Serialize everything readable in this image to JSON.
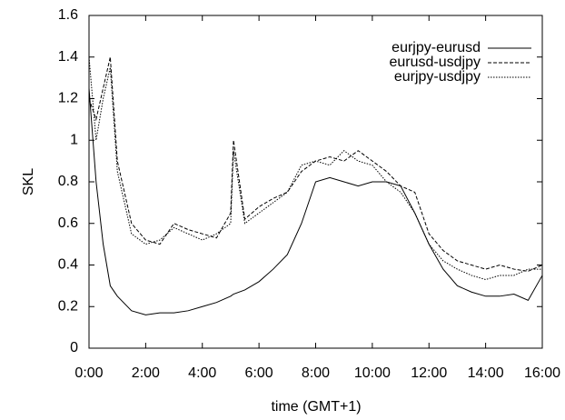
{
  "chart_data": {
    "type": "line",
    "x_label": "time (GMT+1)",
    "y_label": "SKL",
    "x": [
      0,
      0.25,
      0.5,
      0.75,
      1,
      1.5,
      2,
      2.5,
      3,
      3.5,
      4,
      4.5,
      5,
      5.1,
      5.5,
      6,
      6.5,
      7,
      7.5,
      8,
      8.5,
      9,
      9.5,
      10,
      10.5,
      11,
      11.5,
      12,
      12.5,
      13,
      13.5,
      14,
      14.5,
      15,
      15.5,
      16
    ],
    "series": [
      {
        "name": "eurjpy-eurusd",
        "color": "#000000",
        "dash": "solid",
        "values": [
          1.25,
          0.8,
          0.5,
          0.3,
          0.25,
          0.18,
          0.16,
          0.17,
          0.17,
          0.18,
          0.2,
          0.22,
          0.25,
          0.26,
          0.28,
          0.32,
          0.38,
          0.45,
          0.6,
          0.8,
          0.82,
          0.8,
          0.78,
          0.8,
          0.8,
          0.78,
          0.65,
          0.5,
          0.38,
          0.3,
          0.27,
          0.25,
          0.25,
          0.26,
          0.23,
          0.35
        ]
      },
      {
        "name": "eurusd-usdjpy",
        "color": "#000000",
        "dash": "dashed",
        "values": [
          1.2,
          1.1,
          1.25,
          1.4,
          0.9,
          0.6,
          0.52,
          0.5,
          0.6,
          0.57,
          0.55,
          0.53,
          0.65,
          1.0,
          0.62,
          0.68,
          0.72,
          0.75,
          0.85,
          0.9,
          0.92,
          0.9,
          0.95,
          0.9,
          0.85,
          0.78,
          0.75,
          0.55,
          0.47,
          0.42,
          0.4,
          0.38,
          0.4,
          0.38,
          0.37,
          0.4
        ]
      },
      {
        "name": "eurjpy-usdjpy",
        "color": "#000000",
        "dash": "dotted",
        "values": [
          1.4,
          1.0,
          1.2,
          1.35,
          0.85,
          0.55,
          0.5,
          0.52,
          0.58,
          0.55,
          0.52,
          0.55,
          0.6,
          0.95,
          0.6,
          0.65,
          0.7,
          0.75,
          0.88,
          0.9,
          0.88,
          0.95,
          0.9,
          0.88,
          0.8,
          0.75,
          0.65,
          0.5,
          0.42,
          0.38,
          0.35,
          0.33,
          0.35,
          0.35,
          0.38,
          0.38
        ]
      }
    ],
    "xlim": [
      0,
      16
    ],
    "xticks": [
      {
        "value": 0,
        "label": "0:00"
      },
      {
        "value": 2,
        "label": "2:00"
      },
      {
        "value": 4,
        "label": "4:00"
      },
      {
        "value": 6,
        "label": "6:00"
      },
      {
        "value": 8,
        "label": "8:00"
      },
      {
        "value": 10,
        "label": "10:00"
      },
      {
        "value": 12,
        "label": "12:00"
      },
      {
        "value": 14,
        "label": "14:00"
      },
      {
        "value": 16,
        "label": "16:00"
      }
    ],
    "ylim": [
      0,
      1.6
    ],
    "yticks": [
      0,
      0.2,
      0.4,
      0.6,
      0.8,
      1,
      1.2,
      1.4,
      1.6
    ],
    "grid": false,
    "legend": "upper right"
  }
}
